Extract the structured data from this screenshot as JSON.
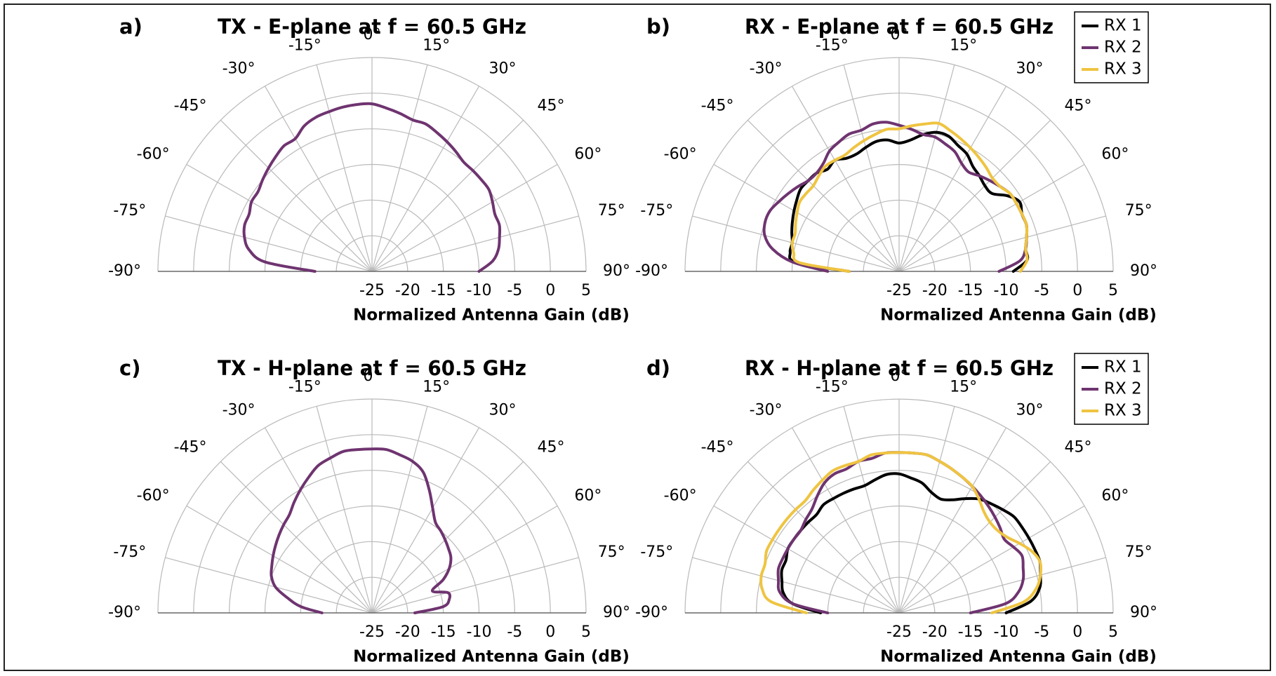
{
  "colors": {
    "RX 1": "#000000",
    "RX 2": "#6f3470",
    "RX 3": "#efc441",
    "TX": "#6f3470"
  },
  "chart_data": [
    {
      "type": "line",
      "panel_label": "a)",
      "title": "TX - E-plane at f = 60.5 GHz",
      "xlabel": "Normalized Antenna Gain (dB)",
      "polar": true,
      "theta_range_deg": [
        -90,
        90
      ],
      "r_range_db": [
        -25,
        5
      ],
      "angle_ticks": [
        "-90°",
        "-75°",
        "-60°",
        "-45°",
        "-30°",
        "-15°",
        "0°",
        "15°",
        "30°",
        "45°",
        "60°",
        "75°",
        "90°"
      ],
      "radial_ticks": [
        "-25",
        "-20",
        "-15",
        "-10",
        "-5",
        "0",
        "5"
      ],
      "legend": [],
      "series": [
        {
          "name": "",
          "color_key": "TX",
          "theta": [
            -90,
            -85,
            -80,
            -75,
            -70,
            -65,
            -60,
            -55,
            -50,
            -45,
            -40,
            -35,
            -30,
            -25,
            -20,
            -15,
            -10,
            -5,
            0,
            5,
            10,
            15,
            20,
            25,
            30,
            35,
            40,
            45,
            50,
            55,
            60,
            65,
            70,
            75,
            80,
            85,
            90
          ],
          "gain": [
            -17,
            -10,
            -7.5,
            -6.5,
            -6,
            -6,
            -5.5,
            -5.5,
            -5,
            -4.5,
            -4,
            -3.5,
            -3.5,
            -2.5,
            -2,
            -1.8,
            -1.6,
            -1.5,
            -1.5,
            -2,
            -2.5,
            -3,
            -3,
            -3.5,
            -4,
            -4.5,
            -5,
            -5,
            -5,
            -5,
            -5.5,
            -6,
            -6,
            -6.5,
            -7,
            -8,
            -10
          ]
        }
      ]
    },
    {
      "type": "line",
      "panel_label": "b)",
      "title": "RX - E-plane at f = 60.5 GHz",
      "xlabel": "Normalized Antenna Gain (dB)",
      "polar": true,
      "theta_range_deg": [
        -90,
        90
      ],
      "r_range_db": [
        -25,
        5
      ],
      "angle_ticks": [
        "-90°",
        "-75°",
        "-60°",
        "-45°",
        "-30°",
        "-15°",
        "0°",
        "15°",
        "30°",
        "45°",
        "60°",
        "75°",
        "90°"
      ],
      "radial_ticks": [
        "-25",
        "-20",
        "-15",
        "-10",
        "-5",
        "0",
        "5"
      ],
      "legend": [
        "RX 1",
        "RX 2",
        "RX 3"
      ],
      "legend_position": "top-right",
      "series": [
        {
          "name": "RX 1",
          "color_key": "RX 1",
          "theta": [
            -90,
            -85,
            -80,
            -75,
            -70,
            -65,
            -60,
            -55,
            -50,
            -45,
            -40,
            -35,
            -30,
            -25,
            -20,
            -15,
            -10,
            -5,
            0,
            5,
            10,
            15,
            20,
            25,
            30,
            35,
            40,
            45,
            50,
            55,
            60,
            65,
            70,
            75,
            80,
            85,
            90
          ],
          "gain": [
            -18,
            -10.5,
            -9.5,
            -9.5,
            -9,
            -8.5,
            -8,
            -7.5,
            -7,
            -7,
            -7,
            -7.5,
            -7,
            -7.5,
            -7.5,
            -7,
            -6.5,
            -6.5,
            -7,
            -6.5,
            -5.5,
            -4.8,
            -4.8,
            -5.5,
            -6,
            -7,
            -7.5,
            -8,
            -8,
            -6.5,
            -5.5,
            -6,
            -6,
            -6.5,
            -7,
            -7,
            -9
          ]
        },
        {
          "name": "RX 2",
          "color_key": "RX 2",
          "theta": [
            -90,
            -85,
            -80,
            -75,
            -70,
            -65,
            -60,
            -55,
            -50,
            -45,
            -40,
            -35,
            -30,
            -25,
            -20,
            -15,
            -10,
            -5,
            0,
            5,
            10,
            15,
            20,
            25,
            30,
            35,
            40,
            45,
            50,
            55,
            60,
            65,
            70,
            75,
            80,
            85,
            90
          ],
          "gain": [
            -15,
            -10,
            -7,
            -5.5,
            -5,
            -5,
            -5.5,
            -6,
            -6.5,
            -7,
            -7,
            -6.5,
            -5.5,
            -5,
            -4.5,
            -4.5,
            -4,
            -4,
            -4.5,
            -5,
            -5.5,
            -5.5,
            -6,
            -6.5,
            -7.5,
            -8,
            -7.5,
            -7,
            -6.5,
            -6,
            -6,
            -6,
            -6,
            -6.5,
            -7,
            -8,
            -11
          ]
        },
        {
          "name": "RX 3",
          "color_key": "RX 3",
          "theta": [
            -90,
            -85,
            -80,
            -75,
            -70,
            -65,
            -60,
            -55,
            -50,
            -45,
            -40,
            -35,
            -30,
            -25,
            -20,
            -15,
            -10,
            -5,
            0,
            5,
            10,
            15,
            20,
            25,
            30,
            35,
            40,
            45,
            50,
            55,
            60,
            65,
            70,
            75,
            80,
            85,
            90
          ],
          "gain": [
            -18,
            -11,
            -10,
            -9.5,
            -9.5,
            -9,
            -8.5,
            -8,
            -8,
            -8,
            -7.5,
            -7,
            -7,
            -7,
            -6.5,
            -6,
            -5.5,
            -5,
            -5,
            -4.5,
            -4,
            -3.5,
            -4,
            -4.5,
            -5,
            -5.5,
            -6,
            -6.5,
            -6.5,
            -6,
            -6,
            -6,
            -6,
            -6.5,
            -7,
            -7,
            -8
          ]
        }
      ]
    },
    {
      "type": "line",
      "panel_label": "c)",
      "title": "TX - H-plane at f = 60.5 GHz",
      "xlabel": "Normalized Antenna Gain (dB)",
      "polar": true,
      "theta_range_deg": [
        -90,
        90
      ],
      "r_range_db": [
        -25,
        5
      ],
      "angle_ticks": [
        "-90°",
        "-75°",
        "-60°",
        "-45°",
        "-30°",
        "-15°",
        "0°",
        "15°",
        "30°",
        "45°",
        "60°",
        "75°",
        "90°"
      ],
      "radial_ticks": [
        "-25",
        "-20",
        "-15",
        "-10",
        "-5",
        "0",
        "5"
      ],
      "legend": [],
      "series": [
        {
          "name": "",
          "color_key": "TX",
          "theta": [
            -90,
            -85,
            -80,
            -75,
            -70,
            -65,
            -60,
            -55,
            -50,
            -45,
            -40,
            -35,
            -30,
            -25,
            -20,
            -15,
            -10,
            -5,
            0,
            5,
            10,
            15,
            20,
            25,
            30,
            35,
            40,
            45,
            50,
            55,
            60,
            65,
            70,
            75,
            80,
            85,
            90
          ],
          "gain": [
            -18,
            -15,
            -13,
            -11,
            -10,
            -9.5,
            -9,
            -8.5,
            -8,
            -7.5,
            -7,
            -6,
            -5,
            -4,
            -3,
            -2.5,
            -2,
            -2,
            -2,
            -2,
            -2.5,
            -3,
            -4,
            -6,
            -8,
            -9.5,
            -10,
            -10.5,
            -11,
            -11.5,
            -12.5,
            -14,
            -16,
            -14,
            -14,
            -15,
            -19
          ]
        }
      ]
    },
    {
      "type": "line",
      "panel_label": "d)",
      "title": "RX - H-plane at f = 60.5 GHz",
      "xlabel": "Normalized Antenna Gain (dB)",
      "polar": true,
      "theta_range_deg": [
        -90,
        90
      ],
      "r_range_db": [
        -25,
        5
      ],
      "angle_ticks": [
        "-90°",
        "-75°",
        "-60°",
        "-45°",
        "-30°",
        "-15°",
        "0°",
        "15°",
        "30°",
        "45°",
        "60°",
        "75°",
        "90°"
      ],
      "radial_ticks": [
        "-25",
        "-20",
        "-15",
        "-10",
        "-5",
        "0",
        "5"
      ],
      "legend": [
        "RX 1",
        "RX 2",
        "RX 3"
      ],
      "legend_position": "top-right",
      "series": [
        {
          "name": "RX 1",
          "color_key": "RX 1",
          "theta": [
            -90,
            -85,
            -80,
            -75,
            -70,
            -65,
            -60,
            -55,
            -50,
            -45,
            -40,
            -35,
            -30,
            -25,
            -20,
            -15,
            -10,
            -5,
            0,
            5,
            10,
            15,
            20,
            25,
            30,
            35,
            40,
            45,
            50,
            55,
            60,
            65,
            70,
            75,
            80,
            85,
            90
          ],
          "gain": [
            -14,
            -10,
            -8.5,
            -8,
            -7.5,
            -7.5,
            -7,
            -7,
            -7,
            -7,
            -7,
            -6.5,
            -6.5,
            -6.5,
            -6.5,
            -6.5,
            -6,
            -5.5,
            -5.5,
            -6,
            -6.5,
            -7.5,
            -8,
            -7.5,
            -6.5,
            -5.5,
            -5,
            -4.5,
            -4,
            -4,
            -4,
            -4,
            -4,
            -4.5,
            -5,
            -6.5,
            -10
          ]
        },
        {
          "name": "RX 2",
          "color_key": "RX 2",
          "theta": [
            -90,
            -85,
            -80,
            -75,
            -70,
            -65,
            -60,
            -55,
            -50,
            -45,
            -40,
            -35,
            -30,
            -25,
            -20,
            -15,
            -10,
            -5,
            0,
            5,
            10,
            15,
            20,
            25,
            30,
            35,
            40,
            45,
            50,
            55,
            60,
            65,
            70,
            75,
            80,
            85,
            90
          ],
          "gain": [
            -15,
            -10,
            -8,
            -7.5,
            -7,
            -7,
            -7,
            -7,
            -7,
            -6.5,
            -6,
            -5,
            -4,
            -3.5,
            -3.5,
            -3,
            -3,
            -2.5,
            -2.5,
            -2.5,
            -2.5,
            -3,
            -3.5,
            -4,
            -4.5,
            -5,
            -5.5,
            -6,
            -6.5,
            -7,
            -6.5,
            -6,
            -6.5,
            -7,
            -8,
            -10,
            -15
          ]
        },
        {
          "name": "RX 3",
          "color_key": "RX 3",
          "theta": [
            -90,
            -85,
            -80,
            -75,
            -70,
            -65,
            -60,
            -55,
            -50,
            -45,
            -40,
            -35,
            -30,
            -25,
            -20,
            -15,
            -10,
            -5,
            0,
            5,
            10,
            15,
            20,
            25,
            30,
            35,
            40,
            45,
            50,
            55,
            60,
            65,
            70,
            75,
            80,
            85,
            90
          ],
          "gain": [
            -12,
            -7,
            -5.5,
            -5,
            -5,
            -4.5,
            -4.5,
            -4.5,
            -4.5,
            -4.5,
            -4.5,
            -4,
            -3.5,
            -3,
            -3,
            -3,
            -2.5,
            -2.5,
            -2.5,
            -2.5,
            -2.5,
            -3,
            -3.5,
            -4,
            -4.5,
            -5.5,
            -6.5,
            -7,
            -7,
            -6.5,
            -5.5,
            -4.5,
            -4,
            -4.5,
            -5.5,
            -7.5,
            -12
          ]
        }
      ]
    }
  ]
}
